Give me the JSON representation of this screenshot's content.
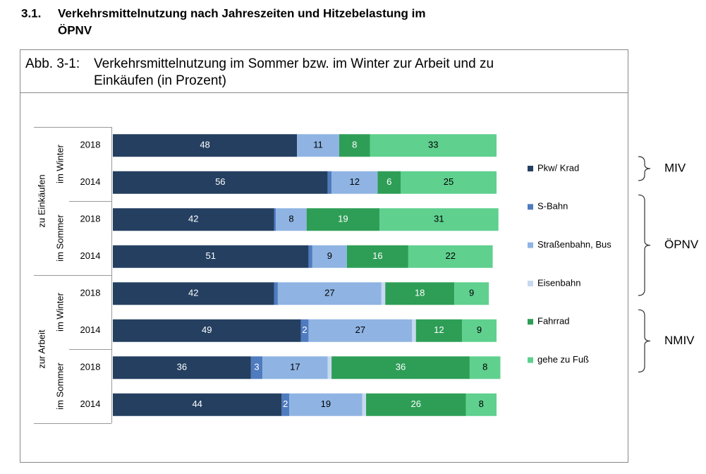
{
  "heading": {
    "number": "3.1.",
    "lines": [
      "Verkehrsmittelnutzung nach Jahreszeiten und Hitzebelastung im",
      "ÖPNV"
    ]
  },
  "chart_data": {
    "type": "stacked-bar-horizontal",
    "figure_number": "Abb. 3-1:",
    "caption_lines": [
      "Verkehrsmittelnutzung im Sommer bzw. im Winter zur Arbeit und zu",
      "Einkäufen (in Prozent)"
    ],
    "categories": [
      "2018",
      "2014",
      "2018",
      "2014",
      "2018",
      "2014",
      "2018",
      "2014"
    ],
    "category_groups": [
      {
        "label": "zu Einkäufen",
        "subgroups": [
          "im Winter",
          "im Sommer"
        ]
      },
      {
        "label": "zur Arbeit",
        "subgroups": [
          "im Winter",
          "im Sommer"
        ]
      }
    ],
    "xlim": [
      0,
      100
    ],
    "series": [
      {
        "name": "Pkw/ Krad",
        "color": "#243f60",
        "values": [
          48,
          56,
          42,
          51,
          42,
          49,
          36,
          44
        ]
      },
      {
        "name": "S-Bahn",
        "color": "#4f7bbf",
        "values": [
          0,
          1,
          0.5,
          1,
          1,
          2,
          3,
          2
        ]
      },
      {
        "name": "Straßenbahn, Bus",
        "color": "#8fb4e3",
        "values": [
          11,
          12,
          8,
          9,
          27,
          27,
          17,
          19
        ]
      },
      {
        "name": "Eisenbahn",
        "color": "#c6d9f0",
        "values": [
          0,
          0,
          0,
          0,
          1,
          1,
          1,
          1
        ]
      },
      {
        "name": "Fahrrad",
        "color": "#2e9e57",
        "values": [
          8,
          6,
          19,
          16,
          18,
          12,
          36,
          26
        ]
      },
      {
        "name": "gehe zu Fuß",
        "color": "#5fd08e",
        "values": [
          33,
          25,
          31,
          22,
          9,
          9,
          8,
          8
        ]
      }
    ],
    "mode_groups": [
      {
        "label": "MIV",
        "series": [
          0
        ]
      },
      {
        "label": "ÖPNV",
        "series": [
          1,
          2,
          3
        ]
      },
      {
        "label": "NMIV",
        "series": [
          4,
          5
        ]
      }
    ]
  }
}
